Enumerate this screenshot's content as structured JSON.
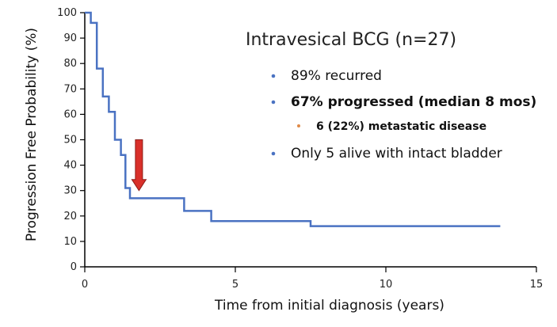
{
  "chart_data": {
    "type": "line",
    "step": true,
    "title": "Intravesical BCG (n=27)",
    "xlabel": "Time from initial diagnosis (years)",
    "ylabel": "Progression Free Probability (%)",
    "xlim": [
      0,
      15
    ],
    "ylim": [
      0,
      100
    ],
    "x_ticks": [
      0,
      5,
      10,
      15
    ],
    "y_ticks": [
      0,
      10,
      20,
      30,
      40,
      50,
      60,
      70,
      80,
      90,
      100
    ],
    "grid": false,
    "series": [
      {
        "x": [
          0,
          0.2,
          0.4,
          0.6,
          0.8,
          1.0,
          1.2,
          1.35,
          1.5,
          3.3,
          4.2,
          7.5,
          13.8
        ],
        "y": [
          100,
          96,
          78,
          67,
          61,
          50,
          44,
          31,
          27,
          22,
          18,
          16,
          16
        ]
      }
    ],
    "annotations": [
      {
        "type": "arrow",
        "x": 1.8,
        "y_from": 50,
        "y_to": 30,
        "color": "#d9302a"
      }
    ]
  },
  "bullets": [
    {
      "text": "89% recurred",
      "level": 1,
      "bold": false,
      "color": "#111111",
      "bullet_color": "#4a72c2"
    },
    {
      "text": "67% progressed (median 8 mos)",
      "level": 1,
      "bold": true,
      "color": "#d0302a",
      "bullet_color": "#4a72c2"
    },
    {
      "text": "6 (22%) metastatic disease",
      "level": 2,
      "bold": true,
      "color": "#d0302a",
      "bullet_color": "#e08a48"
    },
    {
      "text": "Only 5 alive with intact bladder",
      "level": 1,
      "bold": false,
      "color": "#111111",
      "bullet_color": "#4a72c2"
    }
  ],
  "colors": {
    "series_line": "#4a72c2",
    "axis": "#000000"
  }
}
